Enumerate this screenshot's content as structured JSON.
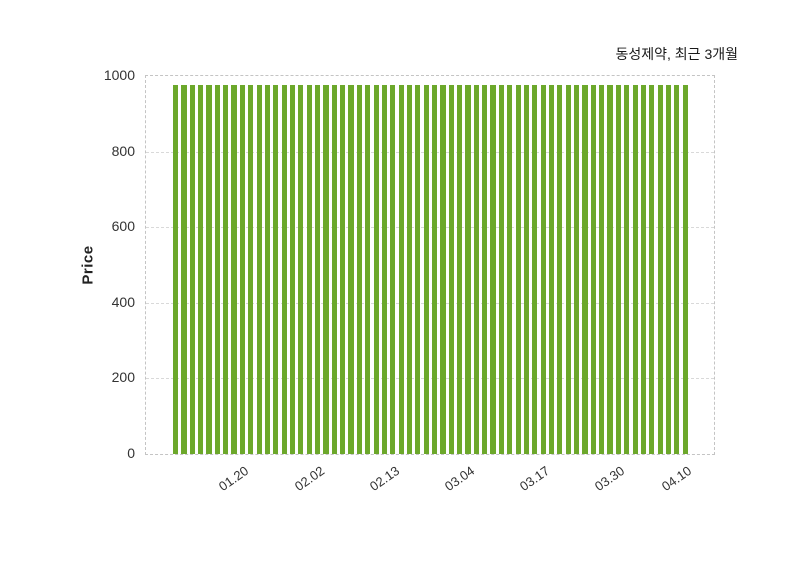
{
  "chart_data": {
    "type": "bar",
    "title": "동성제약, 최근 3개월",
    "ylabel": "Price",
    "xlabel": "",
    "ylim": [
      0,
      1000
    ],
    "yticks": [
      0,
      200,
      400,
      600,
      800,
      1000
    ],
    "grid": true,
    "legend": "none",
    "bar_color": "#6CA82B",
    "values": [
      975,
      975,
      975,
      975,
      975,
      975,
      975,
      975,
      975,
      975,
      975,
      975,
      975,
      975,
      975,
      975,
      975,
      975,
      975,
      975,
      975,
      975,
      975,
      975,
      975,
      975,
      975,
      975,
      975,
      975,
      975,
      975,
      975,
      975,
      975,
      975,
      975,
      975,
      975,
      975,
      975,
      975,
      975,
      975,
      975,
      975,
      975,
      975,
      975,
      975,
      975,
      975,
      975,
      975,
      975,
      975,
      975,
      975,
      975,
      975,
      975,
      975
    ],
    "xticks": [
      {
        "label": "01.20",
        "index": 8
      },
      {
        "label": "02.02",
        "index": 17
      },
      {
        "label": "02.13",
        "index": 26
      },
      {
        "label": "03.04",
        "index": 35
      },
      {
        "label": "03.17",
        "index": 44
      },
      {
        "label": "03.30",
        "index": 53
      },
      {
        "label": "04.10",
        "index": 61
      }
    ]
  }
}
